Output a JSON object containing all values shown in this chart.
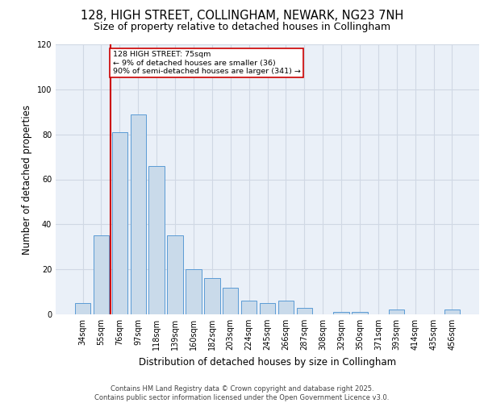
{
  "title_line1": "128, HIGH STREET, COLLINGHAM, NEWARK, NG23 7NH",
  "title_line2": "Size of property relative to detached houses in Collingham",
  "xlabel": "Distribution of detached houses by size in Collingham",
  "ylabel": "Number of detached properties",
  "categories": [
    "34sqm",
    "55sqm",
    "76sqm",
    "97sqm",
    "118sqm",
    "139sqm",
    "160sqm",
    "182sqm",
    "203sqm",
    "224sqm",
    "245sqm",
    "266sqm",
    "287sqm",
    "308sqm",
    "329sqm",
    "350sqm",
    "371sqm",
    "393sqm",
    "414sqm",
    "435sqm",
    "456sqm"
  ],
  "values": [
    5,
    35,
    81,
    89,
    66,
    35,
    20,
    16,
    12,
    6,
    5,
    6,
    3,
    0,
    1,
    1,
    0,
    2,
    0,
    0,
    2
  ],
  "bar_color": "#c9daea",
  "bar_edge_color": "#5b9bd5",
  "grid_color": "#d0d8e4",
  "background_color": "#eaf0f8",
  "annotation_box_color": "#ffffff",
  "annotation_border_color": "#cc0000",
  "red_line_color": "#cc0000",
  "annotation_text_line1": "128 HIGH STREET: 75sqm",
  "annotation_text_line2": "← 9% of detached houses are smaller (36)",
  "annotation_text_line3": "90% of semi-detached houses are larger (341) →",
  "ylim": [
    0,
    120
  ],
  "yticks": [
    0,
    20,
    40,
    60,
    80,
    100,
    120
  ],
  "footer_line1": "Contains HM Land Registry data © Crown copyright and database right 2025.",
  "footer_line2": "Contains public sector information licensed under the Open Government Licence v3.0.",
  "annotation_fontsize": 6.8,
  "title1_fontsize": 10.5,
  "title2_fontsize": 9.0,
  "axis_label_fontsize": 8.5,
  "tick_fontsize": 7.0,
  "footer_fontsize": 6.0
}
